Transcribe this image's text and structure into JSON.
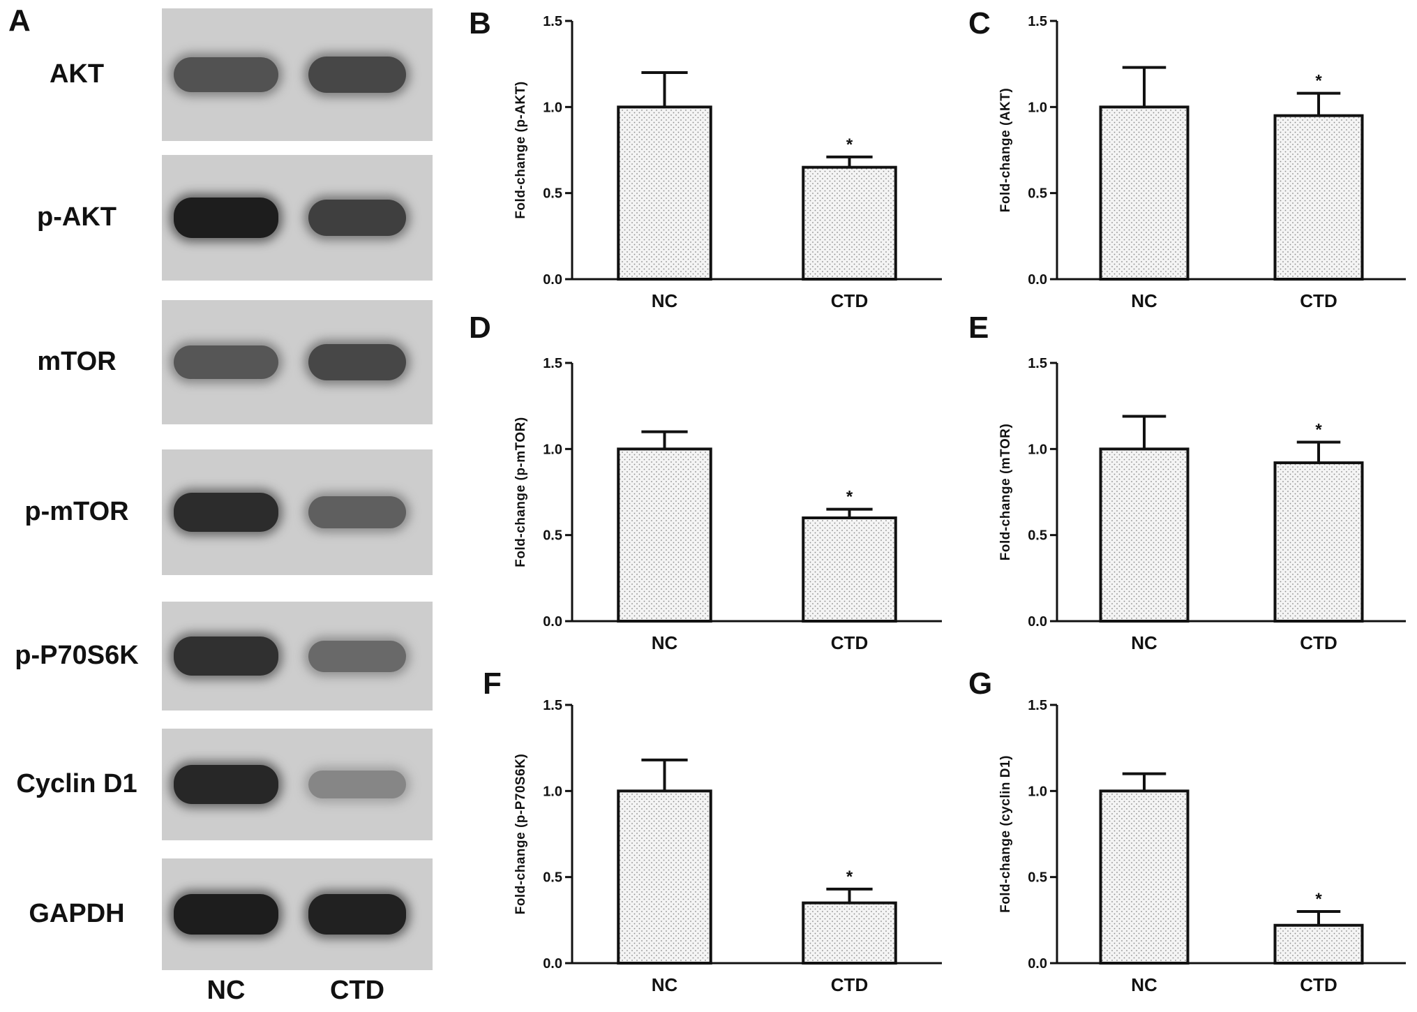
{
  "panel_a": {
    "letter": "A",
    "blots": [
      {
        "label": "AKT",
        "nc_intensity": 0.62,
        "ctd_intensity": 0.68
      },
      {
        "label": "p-AKT",
        "nc_intensity": 0.9,
        "ctd_intensity": 0.72
      },
      {
        "label": "mTOR",
        "nc_intensity": 0.6,
        "ctd_intensity": 0.68
      },
      {
        "label": "p-mTOR",
        "nc_intensity": 0.82,
        "ctd_intensity": 0.55
      },
      {
        "label": "p-P70S6K",
        "nc_intensity": 0.8,
        "ctd_intensity": 0.5
      },
      {
        "label": "Cyclin D1",
        "nc_intensity": 0.85,
        "ctd_intensity": 0.35
      },
      {
        "label": "GAPDH",
        "nc_intensity": 0.9,
        "ctd_intensity": 0.88
      }
    ],
    "lanes": [
      "NC",
      "CTD"
    ]
  },
  "chart_data": [
    {
      "panel": "B",
      "type": "bar",
      "categories": [
        "NC",
        "CTD"
      ],
      "values": [
        1.0,
        0.65
      ],
      "error": [
        0.2,
        0.06
      ],
      "significance": [
        "",
        "*"
      ],
      "ylabel": "Fold-change (p-AKT)",
      "ylim": [
        0,
        1.5
      ],
      "yticks": [
        "0.0",
        "0.5",
        "1.0",
        "1.5"
      ]
    },
    {
      "panel": "C",
      "type": "bar",
      "categories": [
        "NC",
        "CTD"
      ],
      "values": [
        1.0,
        0.95
      ],
      "error": [
        0.23,
        0.13
      ],
      "significance": [
        "",
        "*"
      ],
      "ylabel": "Fold-change (AKT)",
      "ylim": [
        0,
        1.5
      ],
      "yticks": [
        "0.0",
        "0.5",
        "1.0",
        "1.5"
      ]
    },
    {
      "panel": "D",
      "type": "bar",
      "categories": [
        "NC",
        "CTD"
      ],
      "values": [
        1.0,
        0.6
      ],
      "error": [
        0.1,
        0.05
      ],
      "significance": [
        "",
        "*"
      ],
      "ylabel": "Fold-change (p-mTOR)",
      "ylim": [
        0,
        1.5
      ],
      "yticks": [
        "0.0",
        "0.5",
        "1.0",
        "1.5"
      ]
    },
    {
      "panel": "E",
      "type": "bar",
      "categories": [
        "NC",
        "CTD"
      ],
      "values": [
        1.0,
        0.92
      ],
      "error": [
        0.19,
        0.12
      ],
      "significance": [
        "",
        "*"
      ],
      "ylabel": "Fold-change (mTOR)",
      "ylim": [
        0,
        1.5
      ],
      "yticks": [
        "0.0",
        "0.5",
        "1.0",
        "1.5"
      ]
    },
    {
      "panel": "F",
      "type": "bar",
      "categories": [
        "NC",
        "CTD"
      ],
      "values": [
        1.0,
        0.35
      ],
      "error": [
        0.18,
        0.08
      ],
      "significance": [
        "",
        "*"
      ],
      "ylabel": "Fold-change (p-P70S6K)",
      "ylim": [
        0,
        1.5
      ],
      "yticks": [
        "0.0",
        "0.5",
        "1.0",
        "1.5"
      ]
    },
    {
      "panel": "G",
      "type": "bar",
      "categories": [
        "NC",
        "CTD"
      ],
      "values": [
        1.0,
        0.22
      ],
      "error": [
        0.1,
        0.08
      ],
      "significance": [
        "",
        "*"
      ],
      "ylabel": "Fold-change (cyclin D1)",
      "ylim": [
        0,
        1.5
      ],
      "yticks": [
        "0.0",
        "0.5",
        "1.0",
        "1.5"
      ]
    }
  ]
}
